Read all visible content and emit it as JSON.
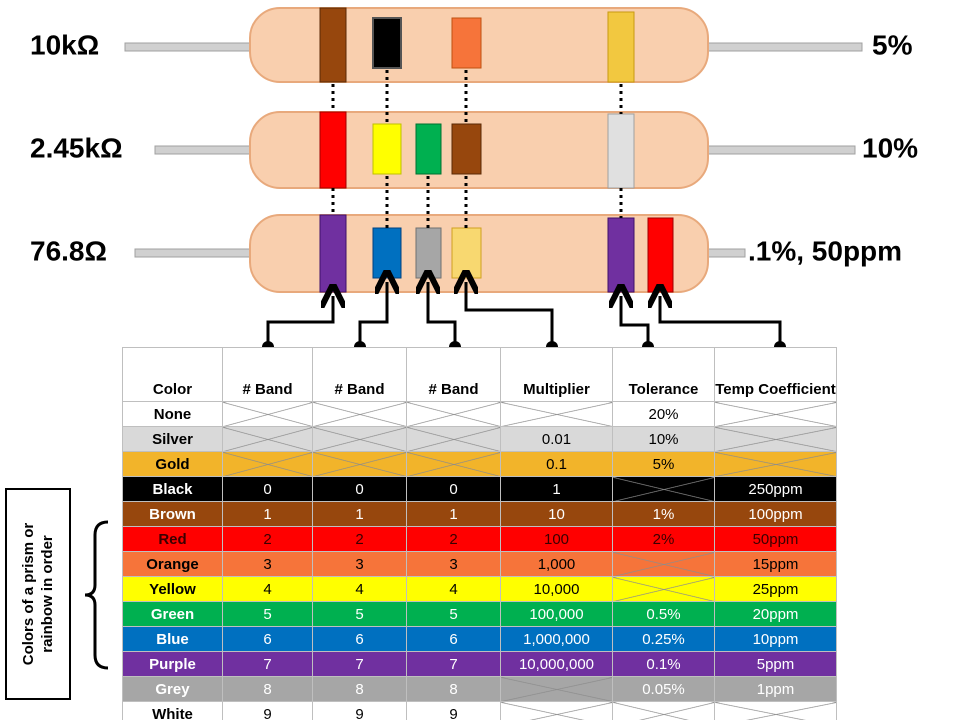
{
  "resistors": [
    {
      "label": "10kΩ",
      "rating": "5%"
    },
    {
      "label": "2.45kΩ",
      "rating": "10%"
    },
    {
      "label": "76.8Ω",
      "rating": ".1%, 50ppm"
    }
  ],
  "table": {
    "header": [
      "Color",
      "# Band",
      "# Band",
      "# Band",
      "Multiplier",
      "Tolerance",
      "Temp Coefficient"
    ],
    "rows": [
      {
        "color": "#ffffff",
        "text": "#000000",
        "cells": [
          "None",
          null,
          null,
          null,
          null,
          "20%",
          null
        ]
      },
      {
        "color": "#d9d9d9",
        "text": "#000000",
        "cells": [
          "Silver",
          null,
          null,
          null,
          "0.01",
          "10%",
          null
        ]
      },
      {
        "color": "#f2b42a",
        "text": "#000000",
        "cells": [
          "Gold",
          null,
          null,
          null,
          "0.1",
          "5%",
          null
        ]
      },
      {
        "color": "#000000",
        "text": "#ffffff",
        "cells": [
          "Black",
          "0",
          "0",
          "0",
          "1",
          null,
          "250ppm"
        ]
      },
      {
        "color": "#97470d",
        "text": "#ffffff",
        "cells": [
          "Brown",
          "1",
          "1",
          "1",
          "10",
          "1%",
          "100ppm"
        ]
      },
      {
        "color": "#ff0000",
        "text": "#3a0000",
        "cells": [
          "Red",
          "2",
          "2",
          "2",
          "100",
          "2%",
          "50ppm"
        ]
      },
      {
        "color": "#f6743a",
        "text": "#000000",
        "cells": [
          "Orange",
          "3",
          "3",
          "3",
          "1,000",
          null,
          "15ppm"
        ]
      },
      {
        "color": "#ffff00",
        "text": "#000000",
        "cells": [
          "Yellow",
          "4",
          "4",
          "4",
          "10,000",
          null,
          "25ppm"
        ]
      },
      {
        "color": "#00b050",
        "text": "#ffffff",
        "cells": [
          "Green",
          "5",
          "5",
          "5",
          "100,000",
          "0.5%",
          "20ppm"
        ]
      },
      {
        "color": "#0070c0",
        "text": "#ffffff",
        "cells": [
          "Blue",
          "6",
          "6",
          "6",
          "1,000,000",
          "0.25%",
          "10ppm"
        ]
      },
      {
        "color": "#7030a0",
        "text": "#ffffff",
        "cells": [
          "Purple",
          "7",
          "7",
          "7",
          "10,000,000",
          "0.1%",
          "5ppm"
        ]
      },
      {
        "color": "#a6a6a6",
        "text": "#ffffff",
        "cells": [
          "Grey",
          "8",
          "8",
          "8",
          null,
          "0.05%",
          "1ppm"
        ]
      },
      {
        "color": "#ffffff",
        "text": "#000000",
        "cells": [
          "White",
          "9",
          "9",
          "9",
          null,
          null,
          null
        ]
      }
    ]
  },
  "note": "Colors of a prism or rainbow in order"
}
